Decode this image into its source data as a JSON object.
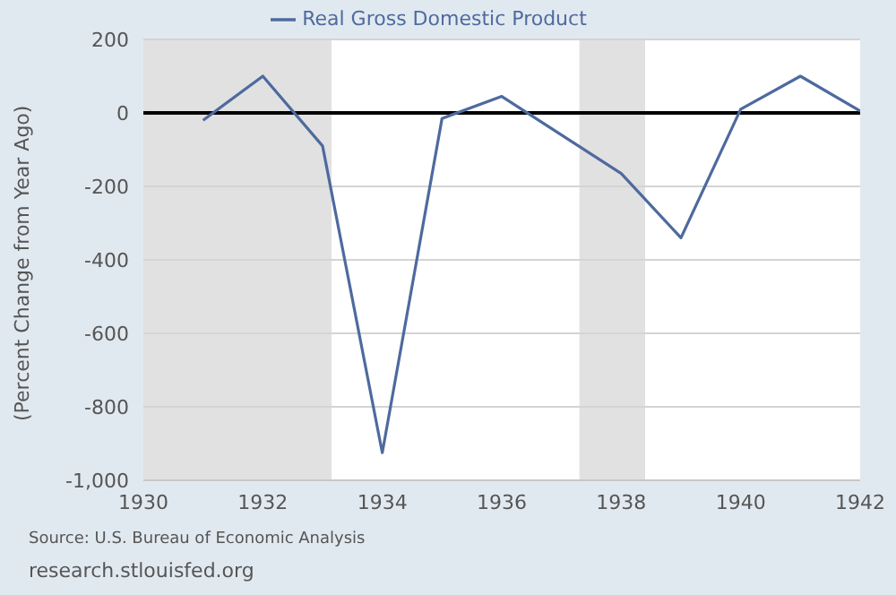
{
  "chart_data": {
    "type": "line",
    "x": [
      1931,
      1932,
      1933,
      1934,
      1935,
      1936,
      1937,
      1938,
      1939,
      1940,
      1941,
      1942
    ],
    "series": [
      {
        "name": "Real Gross Domestic Product",
        "color": "#4e6a9e",
        "values": [
          -20,
          100,
          -90,
          -925,
          -15,
          45,
          -60,
          -165,
          -340,
          10,
          100,
          5
        ]
      }
    ],
    "ylabel": "(Percent Change from Year Ago)",
    "xlim": [
      1930,
      1942
    ],
    "xticks": [
      1930,
      1932,
      1934,
      1936,
      1938,
      1940,
      1942
    ],
    "ylim": [
      -1000,
      200
    ],
    "yticks": [
      {
        "value": -1000,
        "label": "-1,000"
      },
      -800,
      -600,
      -400,
      -200,
      0,
      200
    ],
    "grid": "y",
    "legend": "top",
    "marker": "none",
    "ref_lines": [
      {
        "axis": "y",
        "value": 0,
        "color": "#000000"
      }
    ],
    "bands": [
      {
        "axis": "x",
        "from": 1930,
        "to": 1933.15,
        "color": "#e1e1e1"
      },
      {
        "axis": "x",
        "from": 1937.3,
        "to": 1938.4,
        "color": "#e1e1e1"
      }
    ],
    "annotations": [
      "Source: U.S. Bureau of Economic Analysis",
      "research.stlouisfed.org"
    ]
  }
}
